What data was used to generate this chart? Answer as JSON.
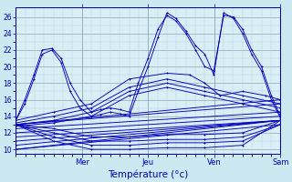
{
  "background_color": "#cce8f0",
  "plot_bg_color": "#daeef5",
  "line_color": "#0000bb",
  "xlabel": "Température (°c)",
  "x_tick_labels": [
    "Mer",
    "Jeu",
    "Ven",
    "Sam"
  ],
  "ylim": [
    9.5,
    27.2
  ],
  "yticks": [
    10,
    12,
    14,
    16,
    18,
    20,
    22,
    24,
    26
  ],
  "curves": [
    {
      "x": [
        0.0,
        0.12,
        0.24,
        0.35,
        0.48,
        0.6,
        0.72,
        0.85,
        1.0,
        1.12,
        1.25,
        1.38,
        1.5,
        1.62,
        1.75,
        1.88,
        2.0,
        2.12,
        2.25,
        2.38,
        2.5,
        2.62,
        2.75,
        2.88,
        3.0,
        3.12,
        3.25,
        3.38,
        3.5
      ],
      "y": [
        13.5,
        16,
        19,
        22,
        22.2,
        21,
        18,
        16,
        14.5,
        14.8,
        15,
        14.8,
        14.5,
        18,
        21,
        24.5,
        26.2,
        25.5,
        24,
        22,
        20,
        19.5,
        26.2,
        26.0,
        24.5,
        22,
        20,
        16.5,
        14.0
      ]
    },
    {
      "x": [
        0.0,
        0.12,
        0.24,
        0.35,
        0.48,
        0.6,
        0.72,
        0.85,
        1.0,
        1.12,
        1.25,
        1.38,
        1.5,
        1.62,
        1.75,
        1.88,
        2.0,
        2.12,
        2.25,
        2.38,
        2.5,
        2.62,
        2.75,
        2.88,
        3.0,
        3.12,
        3.25,
        3.38,
        3.5
      ],
      "y": [
        13.5,
        15.5,
        18.5,
        21.5,
        22.0,
        20.5,
        17,
        15,
        14.0,
        14.2,
        14.5,
        14.3,
        14.0,
        17,
        20,
        23.5,
        26.5,
        25.8,
        24.3,
        22.5,
        21.5,
        19.0,
        26.5,
        25.8,
        24.0,
        21.5,
        19.5,
        16.0,
        13.8
      ]
    },
    {
      "x": [
        0.0,
        0.5,
        1.0,
        1.5,
        2.0,
        2.3,
        2.5,
        2.7,
        3.0,
        3.3,
        3.5
      ],
      "y": [
        13.5,
        14.5,
        15.5,
        18.5,
        19.2,
        19.0,
        18.0,
        16.5,
        17.0,
        16.5,
        16.0
      ]
    },
    {
      "x": [
        0.0,
        0.5,
        1.0,
        1.5,
        2.0,
        2.5,
        3.0,
        3.5
      ],
      "y": [
        13.2,
        14.0,
        15.0,
        17.5,
        18.5,
        17.5,
        16.5,
        15.5
      ]
    },
    {
      "x": [
        0.0,
        0.5,
        1.0,
        1.5,
        2.0,
        2.5,
        3.0,
        3.5
      ],
      "y": [
        13.0,
        13.5,
        14.5,
        17.0,
        18.0,
        17.0,
        16.0,
        15.0
      ]
    },
    {
      "x": [
        0.0,
        0.5,
        1.0,
        1.5,
        2.0,
        2.5,
        3.0,
        3.5
      ],
      "y": [
        12.8,
        13.2,
        14.0,
        16.5,
        17.5,
        16.5,
        15.5,
        14.5
      ]
    },
    {
      "x": [
        0.0,
        3.5
      ],
      "y": [
        13.0,
        16.0
      ]
    },
    {
      "x": [
        0.0,
        3.5
      ],
      "y": [
        13.0,
        15.5
      ]
    },
    {
      "x": [
        0.0,
        3.5
      ],
      "y": [
        12.5,
        14.5
      ]
    },
    {
      "x": [
        0.0,
        3.5
      ],
      "y": [
        12.0,
        14.0
      ]
    },
    {
      "x": [
        0.0,
        3.5
      ],
      "y": [
        11.5,
        13.5
      ]
    },
    {
      "x": [
        0.0,
        3.5
      ],
      "y": [
        11.0,
        13.5
      ]
    },
    {
      "x": [
        0.0,
        3.5
      ],
      "y": [
        10.5,
        13.5
      ]
    },
    {
      "x": [
        0.0,
        3.5
      ],
      "y": [
        10.0,
        13.5
      ]
    },
    {
      "x": [
        0.0,
        3.5
      ],
      "y": [
        10.0,
        13.0
      ]
    }
  ],
  "fan_curves": [
    {
      "x": [
        0.0,
        0.5,
        1.0,
        1.5,
        2.0,
        2.5,
        3.0,
        3.5
      ],
      "y": [
        13.0,
        12.5,
        11.5,
        11.5,
        11.8,
        11.8,
        12.0,
        13.5
      ]
    },
    {
      "x": [
        0.0,
        0.5,
        1.0,
        1.5,
        2.0,
        2.5,
        3.0,
        3.5
      ],
      "y": [
        13.0,
        12.0,
        11.0,
        11.0,
        11.2,
        11.2,
        11.5,
        13.0
      ]
    },
    {
      "x": [
        0.0,
        0.5,
        1.0,
        1.5,
        2.0,
        2.5,
        3.0,
        3.5
      ],
      "y": [
        13.0,
        11.5,
        10.5,
        10.5,
        10.8,
        10.8,
        11.0,
        13.0
      ]
    },
    {
      "x": [
        0.0,
        0.5,
        1.0,
        1.5,
        2.0,
        2.5,
        3.0,
        3.5
      ],
      "y": [
        13.0,
        11.0,
        10.0,
        10.0,
        10.2,
        10.2,
        10.5,
        13.5
      ]
    }
  ]
}
